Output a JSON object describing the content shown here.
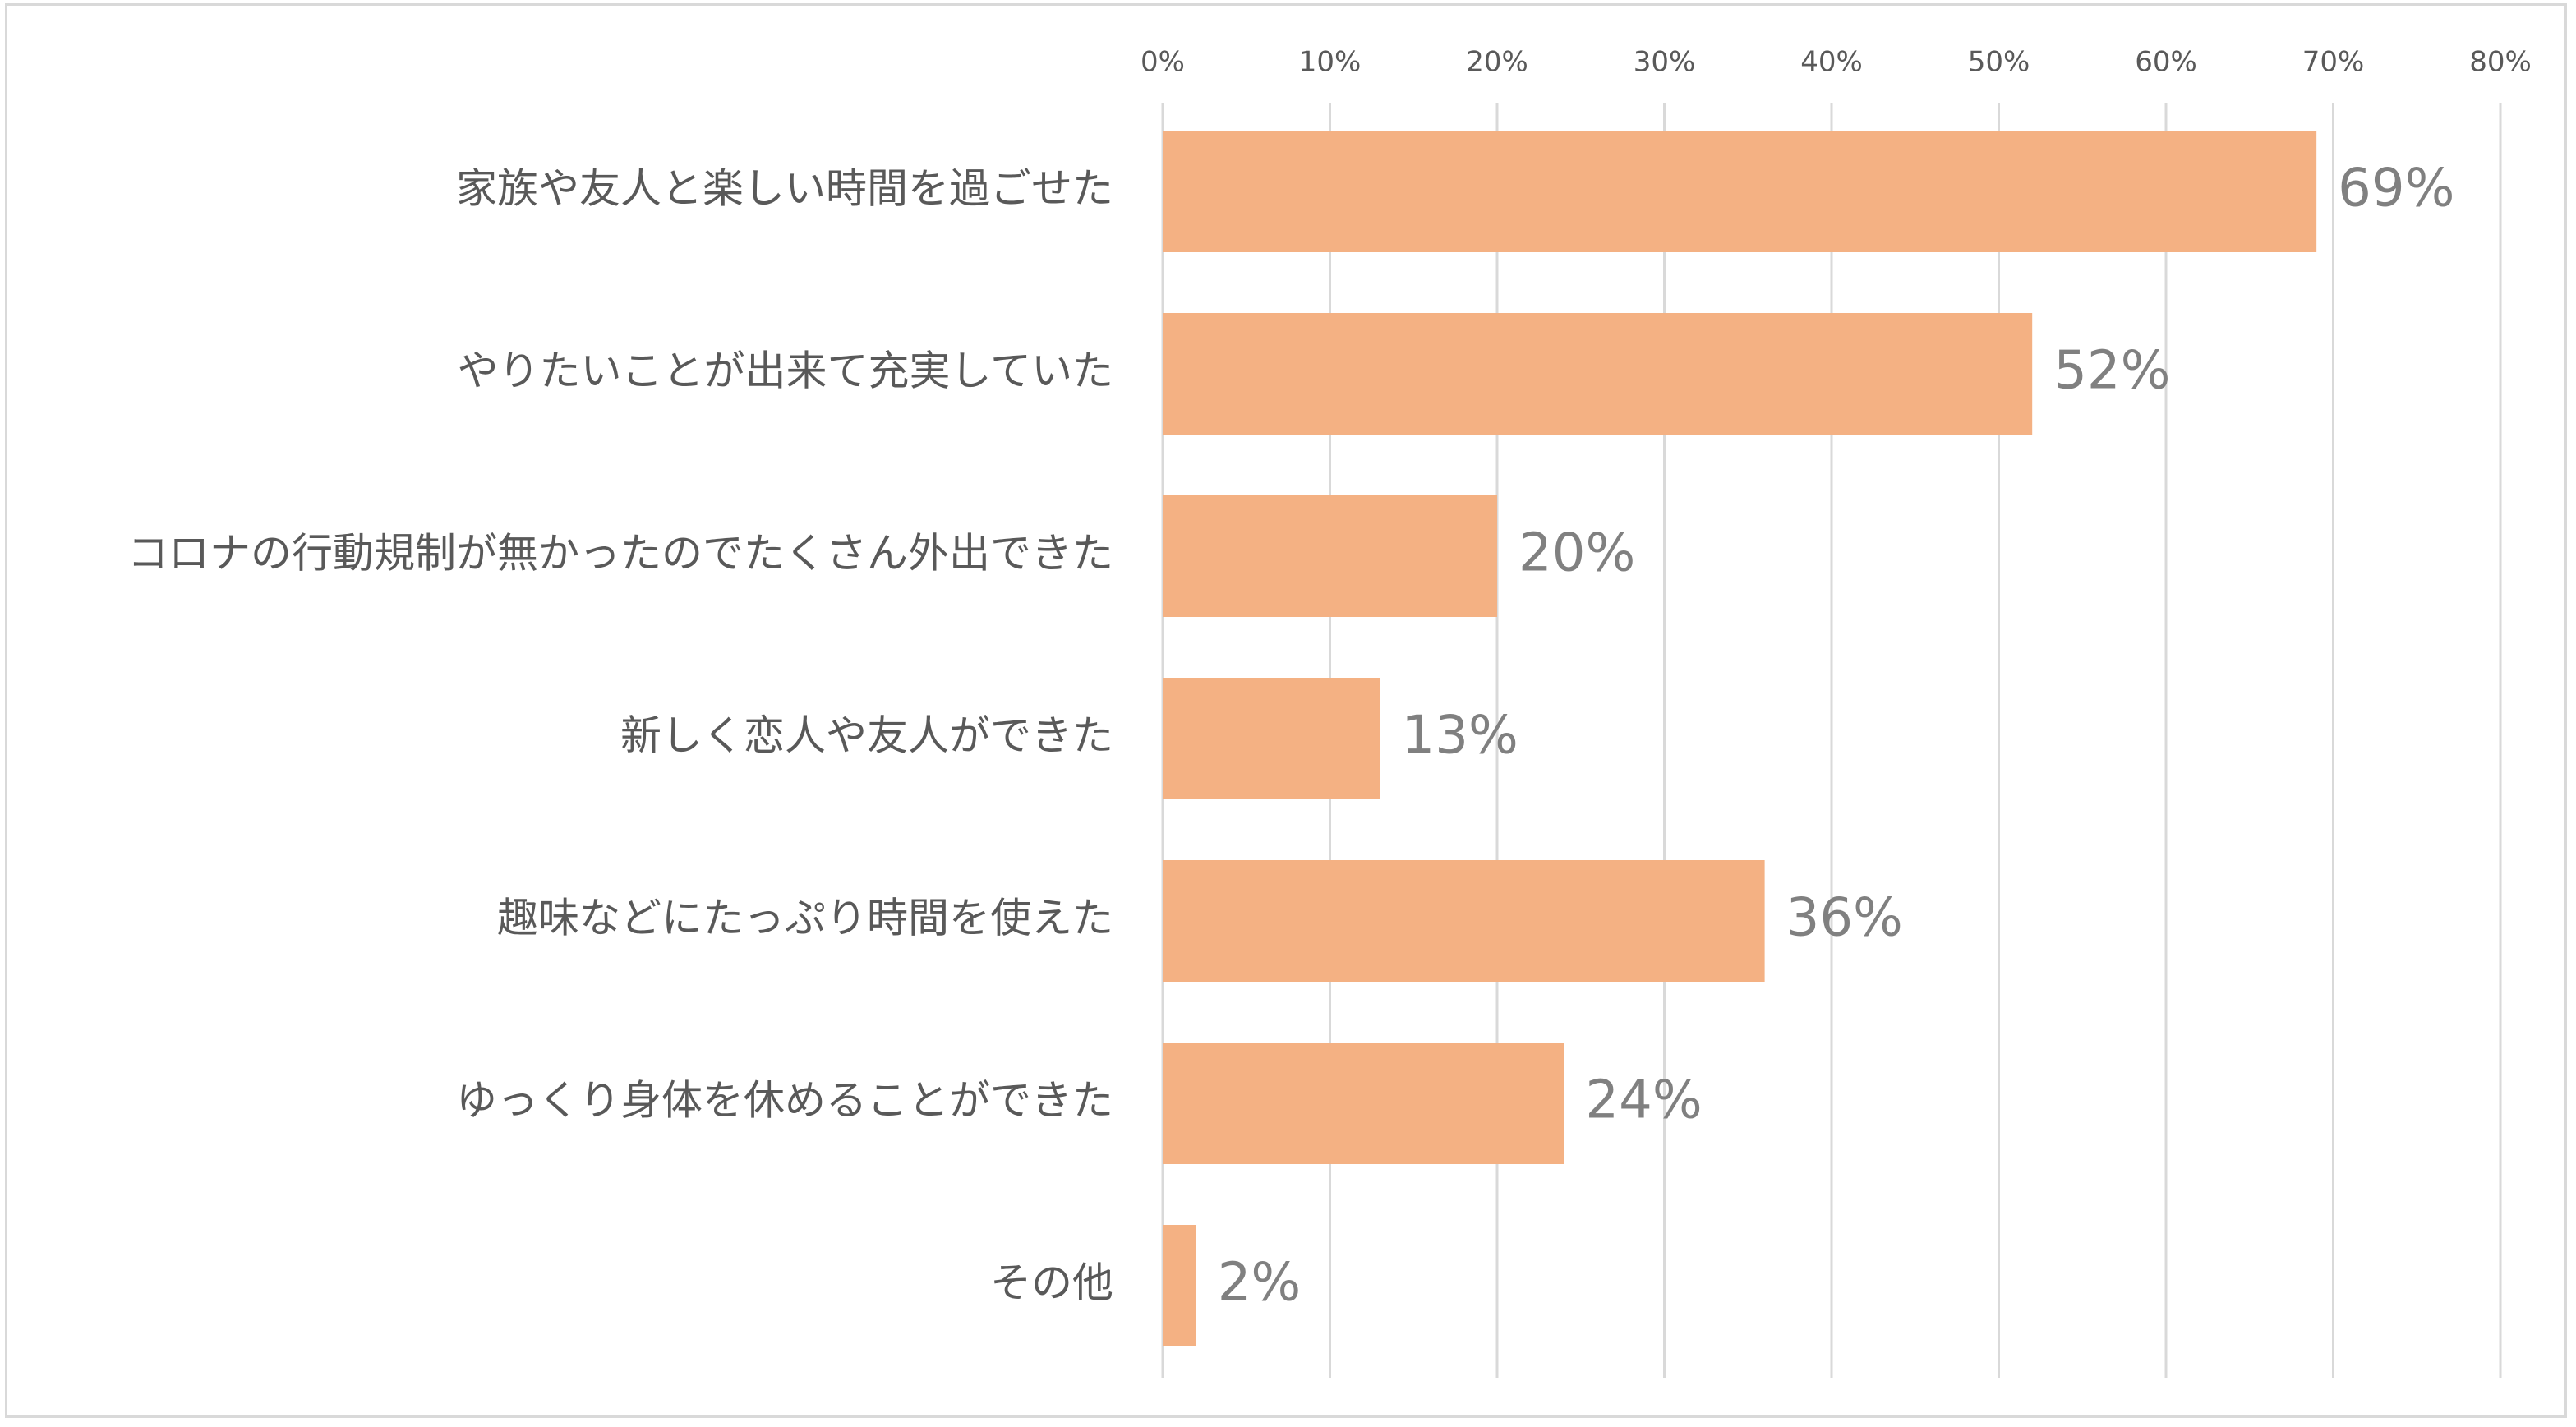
{
  "chart_data": {
    "type": "bar",
    "orientation": "horizontal",
    "title": "",
    "xlabel": "",
    "ylabel": "",
    "categories": [
      "家族や友人と楽しい時間を過ごせた",
      "やりたいことが出来て充実していた",
      "コロナの行動規制が無かったのでたくさん外出できた",
      "新しく恋人や友人ができた",
      "趣味などにたっぷり時間を使えた",
      "ゆっくり身体を休めることができた",
      "その他"
    ],
    "values": [
      69,
      52,
      20,
      13,
      36,
      24,
      2
    ],
    "data_labels": [
      "69%",
      "52%",
      "20%",
      "13%",
      "36%",
      "24%",
      "2%"
    ],
    "xlim": [
      0,
      80
    ],
    "x_ticks": [
      0,
      10,
      20,
      30,
      40,
      50,
      60,
      70,
      80
    ],
    "x_tick_labels": [
      "0%",
      "10%",
      "20%",
      "30%",
      "40%",
      "50%",
      "60%",
      "70%",
      "80%"
    ],
    "x_axis_position": "top",
    "grid": true,
    "legend": "none",
    "colors": {
      "bar": "#f4b183",
      "grid": "#d9d9d9",
      "category_text": "#595959",
      "data_label_text": "#808080",
      "tick_text": "#595959"
    }
  }
}
